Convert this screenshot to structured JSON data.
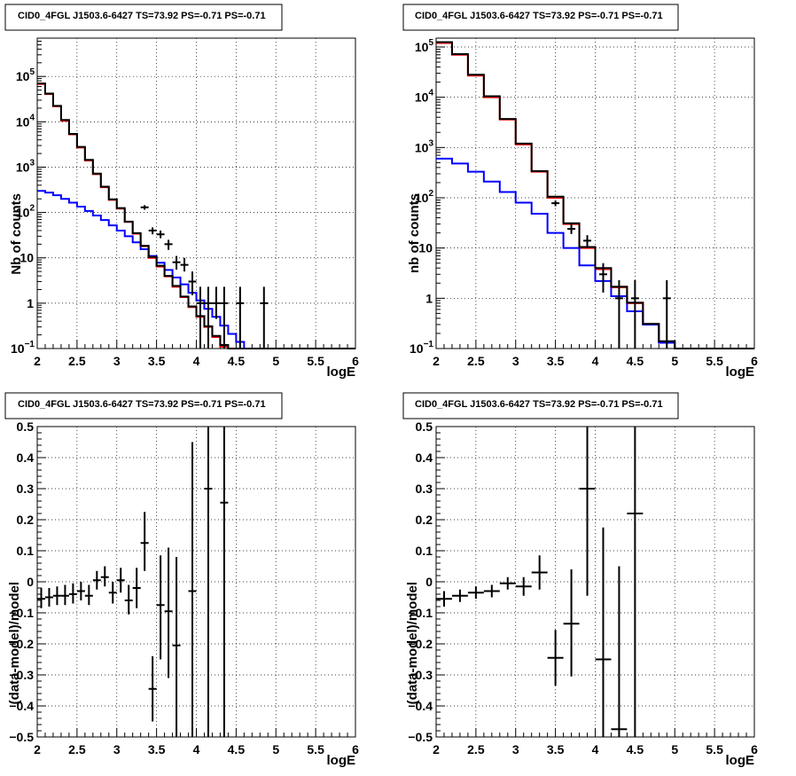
{
  "chart_data": [
    {
      "type": "histogram",
      "title": "CID0_4FGL J1503.6-6427 TS=73.92 PS=-0.71 PS=-0.71",
      "xlabel": "logE",
      "ylabel": "Nb of counts",
      "xlim": [
        2,
        6
      ],
      "ylim": [
        0.1,
        700000
      ],
      "yscale": "log",
      "grid": true,
      "x_ticks": [
        "2",
        "2.5",
        "3",
        "3.5",
        "4",
        "4.5",
        "5",
        "5.5",
        "6"
      ],
      "y_ticks": [
        {
          "value": 0.1,
          "base": "10",
          "exp": "−1"
        },
        {
          "value": 1,
          "text": "1"
        },
        {
          "value": 10,
          "text": "10"
        },
        {
          "value": 100,
          "base": "10",
          "exp": "2"
        },
        {
          "value": 1000,
          "base": "10",
          "exp": "3"
        },
        {
          "value": 10000,
          "base": "10",
          "exp": "4"
        },
        {
          "value": 100000,
          "base": "10",
          "exp": "5"
        }
      ],
      "bin_edges": [
        2.0,
        2.1,
        2.2,
        2.3,
        2.4,
        2.5,
        2.6,
        2.7,
        2.8,
        2.9,
        3.0,
        3.1,
        3.2,
        3.3,
        3.4,
        3.5,
        3.6,
        3.7,
        3.8,
        3.9,
        4.0,
        4.1,
        4.2,
        4.3,
        4.4,
        4.5,
        4.6,
        4.7,
        4.8,
        4.9,
        5.0,
        5.1,
        5.2,
        5.3,
        5.4,
        5.5,
        5.6,
        5.7,
        5.8,
        5.9,
        6.0
      ],
      "series": [
        {
          "color": "#ff0000",
          "values": [
            68000,
            41000,
            22000,
            10500,
            5300,
            2700,
            1400,
            700,
            360,
            190,
            122,
            62,
            34,
            18,
            10,
            6.4,
            3.9,
            2.3,
            1.36,
            0.82,
            0.5,
            0.3,
            0.18,
            0.11,
            0.1,
            0.1,
            0.1,
            0.1,
            0.1,
            0.1,
            0.1,
            0.1,
            0.1,
            0.1,
            0.1,
            0.1,
            0.1,
            0.1,
            0.1,
            0.1
          ]
        },
        {
          "color": "#0000ff",
          "values": [
            300,
            275,
            240,
            200,
            165,
            135,
            108,
            86,
            68,
            52,
            40,
            30,
            22,
            15.5,
            11,
            7.8,
            5.4,
            3.7,
            2.6,
            1.7,
            1.15,
            0.75,
            0.5,
            0.32,
            0.21,
            0.14,
            0.1,
            0.1,
            0.1,
            0.1,
            0.1,
            0.1,
            0.1,
            0.1,
            0.1,
            0.1,
            0.1,
            0.1,
            0.1,
            0.1
          ]
        },
        {
          "color": "#000000",
          "values": [
            70000,
            42000,
            22500,
            11000,
            5400,
            2800,
            1450,
            720,
            370,
            195,
            125,
            63,
            35,
            18.5,
            10.5,
            6.7,
            4.0,
            2.4,
            1.4,
            0.85,
            0.52,
            0.31,
            0.19,
            0.12,
            0.1,
            0.1,
            0.1,
            0.1,
            0.1,
            0.1,
            0.1,
            0.1,
            0.1,
            0.1,
            0.1,
            0.1,
            0.1,
            0.1,
            0.1,
            0.1
          ]
        }
      ],
      "points": [
        {
          "x": 3.35,
          "y": 130,
          "lo": 115,
          "hi": 145
        },
        {
          "x": 3.45,
          "y": 40,
          "lo": 33,
          "hi": 47
        },
        {
          "x": 3.55,
          "y": 33,
          "lo": 27,
          "hi": 40
        },
        {
          "x": 3.65,
          "y": 20,
          "lo": 15,
          "hi": 25
        },
        {
          "x": 3.75,
          "y": 8,
          "lo": 5.5,
          "hi": 11
        },
        {
          "x": 3.85,
          "y": 7,
          "lo": 5,
          "hi": 10
        },
        {
          "x": 3.95,
          "y": 3,
          "lo": 1.5,
          "hi": 5
        },
        {
          "x": 4.05,
          "y": 1,
          "lo": 0.1,
          "hi": 2.3
        },
        {
          "x": 4.15,
          "y": 1,
          "lo": 0.1,
          "hi": 2.3
        },
        {
          "x": 4.25,
          "y": 1,
          "lo": 0.45,
          "hi": 2.3
        },
        {
          "x": 4.35,
          "y": 1,
          "lo": 0.1,
          "hi": 2.3
        },
        {
          "x": 4.55,
          "y": 1,
          "lo": 0.1,
          "hi": 2.3
        },
        {
          "x": 4.85,
          "y": 1,
          "lo": 0.1,
          "hi": 2.3
        }
      ]
    },
    {
      "type": "histogram",
      "title": "CID0_4FGL J1503.6-6427 TS=73.92 PS=-0.71 PS=-0.71",
      "xlabel": "logE",
      "ylabel": "nb of counts",
      "xlim": [
        2,
        6
      ],
      "ylim": [
        0.1,
        150000
      ],
      "yscale": "log",
      "grid": true,
      "x_ticks": [
        "2",
        "2.5",
        "3",
        "3.5",
        "4",
        "4.5",
        "5",
        "5.5",
        "6"
      ],
      "y_ticks": [
        {
          "value": 0.1,
          "base": "10",
          "exp": "−1"
        },
        {
          "value": 1,
          "text": "1"
        },
        {
          "value": 10,
          "text": "10"
        },
        {
          "value": 100,
          "base": "10",
          "exp": "2"
        },
        {
          "value": 1000,
          "base": "10",
          "exp": "3"
        },
        {
          "value": 10000,
          "base": "10",
          "exp": "4"
        },
        {
          "value": 100000,
          "base": "10",
          "exp": "5"
        }
      ],
      "bin_edges": [
        2.0,
        2.2,
        2.4,
        2.6,
        2.8,
        3.0,
        3.2,
        3.4,
        3.6,
        3.8,
        4.0,
        4.2,
        4.4,
        4.6,
        4.8,
        5.0,
        5.2,
        5.4,
        5.6,
        5.8,
        6.0
      ],
      "series": [
        {
          "color": "#ff0000",
          "values": [
            120000,
            70000,
            27000,
            10000,
            3600,
            1150,
            330,
            100,
            30,
            10,
            3.8,
            1.65,
            0.8,
            0.3,
            0.13,
            0.1,
            0.1,
            0.1,
            0.1,
            0.1
          ]
        },
        {
          "color": "#0000ff",
          "values": [
            600,
            480,
            330,
            210,
            130,
            80,
            48,
            20,
            10,
            4.5,
            2.2,
            1.1,
            0.55,
            0.3,
            0.13,
            0.1,
            0.1,
            0.1,
            0.1,
            0.1
          ]
        },
        {
          "color": "#000000",
          "values": [
            125000,
            72000,
            28000,
            10500,
            3700,
            1200,
            340,
            105,
            31,
            10.5,
            4,
            1.7,
            0.82,
            0.31,
            0.14,
            0.1,
            0.1,
            0.1,
            0.1,
            0.1
          ]
        }
      ],
      "points": [
        {
          "x": 3.5,
          "y": 78,
          "lo": 68,
          "hi": 88
        },
        {
          "x": 3.7,
          "y": 24,
          "lo": 19,
          "hi": 30
        },
        {
          "x": 3.9,
          "y": 14,
          "lo": 10,
          "hi": 18
        },
        {
          "x": 4.1,
          "y": 3,
          "lo": 1.3,
          "hi": 5
        },
        {
          "x": 4.3,
          "y": 1,
          "lo": 0.1,
          "hi": 2.3
        },
        {
          "x": 4.5,
          "y": 1,
          "lo": 0.1,
          "hi": 2.3
        },
        {
          "x": 4.9,
          "y": 1,
          "lo": 0.1,
          "hi": 2.3
        }
      ]
    },
    {
      "type": "scatter",
      "title": "CID0_4FGL J1503.6-6427 TS=73.92 PS=-0.71 PS=-0.71",
      "xlabel": "logE",
      "ylabel": "(data-model)/model",
      "xlim": [
        2,
        6
      ],
      "ylim": [
        -0.5,
        0.5
      ],
      "yscale": "linear",
      "grid": true,
      "x_ticks": [
        "2",
        "2.5",
        "3",
        "3.5",
        "4",
        "4.5",
        "5",
        "5.5",
        "6"
      ],
      "y_ticks": [
        {
          "value": -0.5,
          "text": "−0.5"
        },
        {
          "value": -0.4,
          "text": "−0.4"
        },
        {
          "value": -0.3,
          "text": "−0.3"
        },
        {
          "value": -0.2,
          "text": "−0.2"
        },
        {
          "value": -0.1,
          "text": "−0.1"
        },
        {
          "value": 0,
          "text": "0"
        },
        {
          "value": 0.1,
          "text": "0.1"
        },
        {
          "value": 0.2,
          "text": "0.2"
        },
        {
          "value": 0.3,
          "text": "0.3"
        },
        {
          "value": 0.4,
          "text": "0.4"
        },
        {
          "value": 0.5,
          "text": "0.5"
        }
      ],
      "xerr": 0.05,
      "points": [
        {
          "x": 2.05,
          "y": -0.055,
          "lo": -0.085,
          "hi": -0.02
        },
        {
          "x": 2.15,
          "y": -0.05,
          "lo": -0.08,
          "hi": -0.02
        },
        {
          "x": 2.25,
          "y": -0.045,
          "lo": -0.075,
          "hi": -0.015
        },
        {
          "x": 2.35,
          "y": -0.045,
          "lo": -0.075,
          "hi": -0.01
        },
        {
          "x": 2.45,
          "y": -0.04,
          "lo": -0.07,
          "hi": -0.005
        },
        {
          "x": 2.55,
          "y": -0.03,
          "lo": -0.06,
          "hi": 0.0
        },
        {
          "x": 2.65,
          "y": -0.045,
          "lo": -0.075,
          "hi": -0.01
        },
        {
          "x": 2.75,
          "y": 0.005,
          "lo": -0.025,
          "hi": 0.035
        },
        {
          "x": 2.85,
          "y": 0.015,
          "lo": -0.015,
          "hi": 0.05
        },
        {
          "x": 2.95,
          "y": -0.035,
          "lo": -0.07,
          "hi": 0.0
        },
        {
          "x": 3.05,
          "y": 0.005,
          "lo": -0.035,
          "hi": 0.045
        },
        {
          "x": 3.15,
          "y": -0.06,
          "lo": -0.105,
          "hi": -0.01
        },
        {
          "x": 3.25,
          "y": -0.02,
          "lo": -0.085,
          "hi": 0.045
        },
        {
          "x": 3.35,
          "y": 0.125,
          "lo": 0.035,
          "hi": 0.225
        },
        {
          "x": 3.45,
          "y": -0.345,
          "lo": -0.45,
          "hi": -0.24
        },
        {
          "x": 3.55,
          "y": -0.075,
          "lo": -0.25,
          "hi": 0.085
        },
        {
          "x": 3.65,
          "y": -0.095,
          "lo": -0.31,
          "hi": 0.11
        },
        {
          "x": 3.75,
          "y": -0.205,
          "lo": -0.5,
          "hi": 0.08
        },
        {
          "x": 3.95,
          "y": -0.03,
          "lo": -0.5,
          "hi": 0.45
        },
        {
          "x": 4.15,
          "y": 0.3,
          "lo": -0.5,
          "hi": 0.5
        },
        {
          "x": 4.35,
          "y": 0.255,
          "lo": -0.5,
          "hi": 0.5
        }
      ]
    },
    {
      "type": "scatter",
      "title": "CID0_4FGL J1503.6-6427 TS=73.92 PS=-0.71 PS=-0.71",
      "xlabel": "logE",
      "ylabel": "(data-model)/model",
      "xlim": [
        2,
        6
      ],
      "ylim": [
        -0.5,
        0.5
      ],
      "yscale": "linear",
      "grid": true,
      "x_ticks": [
        "2",
        "2.5",
        "3",
        "3.5",
        "4",
        "4.5",
        "5",
        "5.5",
        "6"
      ],
      "y_ticks": [
        {
          "value": -0.5,
          "text": "−0.5"
        },
        {
          "value": -0.4,
          "text": "−0.4"
        },
        {
          "value": -0.3,
          "text": "−0.3"
        },
        {
          "value": -0.2,
          "text": "−0.2"
        },
        {
          "value": -0.1,
          "text": "−0.1"
        },
        {
          "value": 0,
          "text": "0"
        },
        {
          "value": 0.1,
          "text": "0.1"
        },
        {
          "value": 0.2,
          "text": "0.2"
        },
        {
          "value": 0.3,
          "text": "0.3"
        },
        {
          "value": 0.4,
          "text": "0.4"
        },
        {
          "value": 0.5,
          "text": "0.5"
        }
      ],
      "xerr": 0.1,
      "points": [
        {
          "x": 2.1,
          "y": -0.055,
          "lo": -0.08,
          "hi": -0.03
        },
        {
          "x": 2.3,
          "y": -0.045,
          "lo": -0.065,
          "hi": -0.025
        },
        {
          "x": 2.5,
          "y": -0.035,
          "lo": -0.055,
          "hi": -0.015
        },
        {
          "x": 2.7,
          "y": -0.03,
          "lo": -0.05,
          "hi": -0.01
        },
        {
          "x": 2.9,
          "y": -0.005,
          "lo": -0.025,
          "hi": 0.015
        },
        {
          "x": 3.1,
          "y": -0.015,
          "lo": -0.045,
          "hi": 0.015
        },
        {
          "x": 3.3,
          "y": 0.03,
          "lo": -0.025,
          "hi": 0.085
        },
        {
          "x": 3.5,
          "y": -0.245,
          "lo": -0.335,
          "hi": -0.155
        },
        {
          "x": 3.7,
          "y": -0.135,
          "lo": -0.305,
          "hi": 0.04
        },
        {
          "x": 3.9,
          "y": 0.3,
          "lo": -0.045,
          "hi": 0.5
        },
        {
          "x": 4.1,
          "y": -0.25,
          "lo": -0.5,
          "hi": 0.175
        },
        {
          "x": 4.3,
          "y": -0.475,
          "lo": -0.5,
          "hi": 0.05
        },
        {
          "x": 4.5,
          "y": 0.22,
          "lo": -0.5,
          "hi": 0.5
        }
      ]
    }
  ]
}
